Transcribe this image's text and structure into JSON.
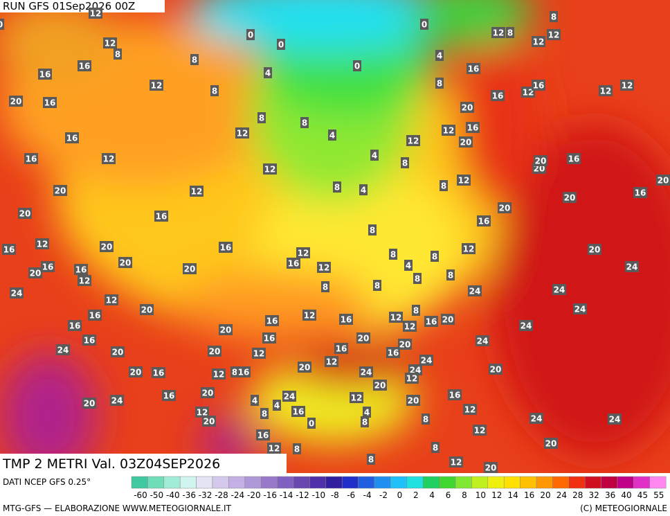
{
  "header": {
    "run": "RUN GFS 01Sep2026 00Z"
  },
  "map": {
    "title": "TMP 2 METRI Val. 03Z04SEP2026",
    "labels": [
      12,
      0,
      0,
      0,
      0,
      8,
      12,
      8,
      12,
      12,
      12,
      8,
      8,
      4,
      0,
      4,
      16,
      16,
      16,
      12,
      8,
      8,
      16,
      12,
      16,
      12,
      12,
      16,
      20,
      20,
      8,
      8,
      12,
      16,
      12,
      16,
      4,
      12,
      20,
      12,
      16,
      4,
      8,
      12,
      20,
      20,
      16,
      12,
      8,
      8,
      4,
      12,
      20,
      16,
      20,
      20,
      20,
      20,
      16,
      16,
      8,
      12,
      20,
      16,
      16,
      12,
      12,
      20,
      20,
      8,
      8,
      16,
      12,
      4,
      16,
      16,
      20,
      20,
      24,
      12,
      8,
      8,
      8,
      8,
      24,
      24,
      24,
      12,
      20,
      24,
      8,
      16,
      12,
      16,
      16,
      12,
      12,
      16,
      20,
      24,
      16,
      20,
      16,
      16,
      20,
      24,
      24,
      20,
      16,
      16,
      20,
      20,
      12,
      24,
      12,
      20,
      24,
      20,
      16,
      12,
      8,
      16,
      20,
      24,
      12,
      20,
      20,
      16,
      24,
      12,
      16,
      4,
      20,
      24,
      20,
      4,
      12,
      8,
      16,
      4,
      20,
      0,
      8,
      8,
      12,
      24,
      24,
      12,
      16,
      12,
      8,
      8,
      20,
      8,
      12,
      20
    ]
  },
  "colorbar": {
    "source": "DATI NCEP GFS 0.25°",
    "labels": [
      -60,
      -50,
      -40,
      -36,
      -32,
      -28,
      -24,
      -20,
      -16,
      -14,
      -12,
      -10,
      -8,
      -6,
      -4,
      -2,
      0,
      2,
      4,
      6,
      8,
      10,
      12,
      14,
      16,
      20,
      24,
      28,
      32,
      36,
      40,
      45,
      55
    ],
    "colors": [
      "#40c8a0",
      "#70dcb8",
      "#a0ecd4",
      "#d0f4ee",
      "#e4e4f4",
      "#d4c8ec",
      "#c4b0e4",
      "#b098d8",
      "#9878c8",
      "#8060c0",
      "#6848b0",
      "#5030a8",
      "#3020a0",
      "#2030c8",
      "#2060e0",
      "#2090f0",
      "#20c0f8",
      "#20e0e0",
      "#20d060",
      "#40d830",
      "#80e830",
      "#c0f020",
      "#f0f010",
      "#ffe000",
      "#ffc000",
      "#ff9800",
      "#ff6800",
      "#f03010",
      "#d01020",
      "#c00040",
      "#c00088",
      "#e030c8",
      "#ff88f0"
    ]
  },
  "footer": {
    "left": "MTG-GFS — ELABORAZIONE WWW.METEOGIORNALE.IT",
    "right": "(C) METEOGIORNALE"
  }
}
